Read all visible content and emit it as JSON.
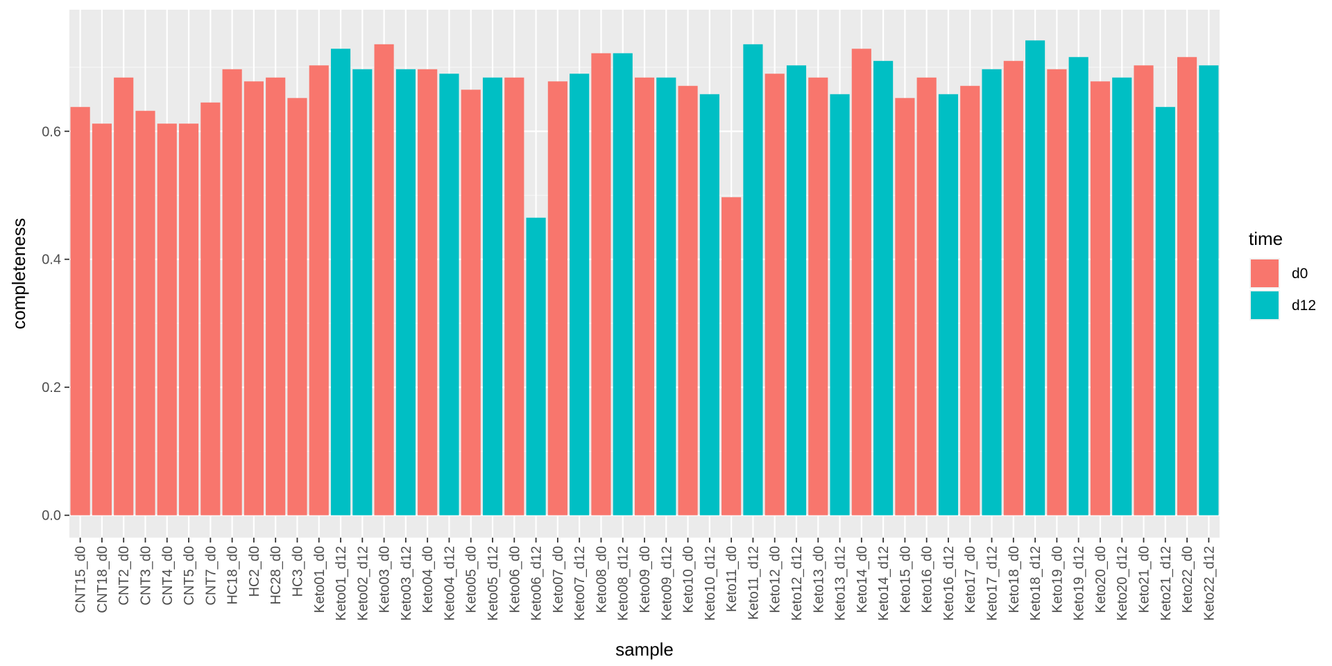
{
  "chart_data": {
    "type": "bar",
    "title": "",
    "xlabel": "sample",
    "ylabel": "completeness",
    "ylim": [
      -0.035,
      0.79
    ],
    "yticks": [
      0.0,
      0.2,
      0.4,
      0.6
    ],
    "ytick_labels": [
      "0.0",
      "0.2",
      "0.4",
      "0.6"
    ],
    "grid": true,
    "legend": {
      "title": "time",
      "position": "right",
      "entries": [
        {
          "label": "d0",
          "color": "#F8766D"
        },
        {
          "label": "d12",
          "color": "#00BFC4"
        }
      ]
    },
    "categories": [
      "CNT15_d0",
      "CNT18_d0",
      "CNT2_d0",
      "CNT3_d0",
      "CNT4_d0",
      "CNT5_d0",
      "CNT7_d0",
      "HC18_d0",
      "HC2_d0",
      "HC28_d0",
      "HC3_d0",
      "Keto01_d0",
      "Keto01_d12",
      "Keto02_d12",
      "Keto03_d0",
      "Keto03_d12",
      "Keto04_d0",
      "Keto04_d12",
      "Keto05_d0",
      "Keto05_d12",
      "Keto06_d0",
      "Keto06_d12",
      "Keto07_d0",
      "Keto07_d12",
      "Keto08_d0",
      "Keto08_d12",
      "Keto09_d0",
      "Keto09_d12",
      "Keto10_d0",
      "Keto10_d12",
      "Keto11_d0",
      "Keto11_d12",
      "Keto12_d0",
      "Keto12_d12",
      "Keto13_d0",
      "Keto13_d12",
      "Keto14_d0",
      "Keto14_d12",
      "Keto15_d0",
      "Keto16_d0",
      "Keto16_d12",
      "Keto17_d0",
      "Keto17_d12",
      "Keto18_d0",
      "Keto18_d12",
      "Keto19_d0",
      "Keto19_d12",
      "Keto20_d0",
      "Keto20_d12",
      "Keto21_d0",
      "Keto21_d12",
      "Keto22_d0",
      "Keto22_d12"
    ],
    "values": [
      0.638,
      0.612,
      0.684,
      0.632,
      0.612,
      0.612,
      0.645,
      0.697,
      0.678,
      0.684,
      0.652,
      0.703,
      0.729,
      0.697,
      0.736,
      0.697,
      0.697,
      0.69,
      0.665,
      0.684,
      0.684,
      0.465,
      0.678,
      0.69,
      0.722,
      0.722,
      0.684,
      0.684,
      0.671,
      0.658,
      0.497,
      0.736,
      0.69,
      0.703,
      0.684,
      0.658,
      0.729,
      0.71,
      0.652,
      0.684,
      0.658,
      0.671,
      0.697,
      0.71,
      0.742,
      0.697,
      0.716,
      0.678,
      0.684,
      0.703,
      0.638,
      0.716,
      0.703
    ],
    "groups": [
      "d0",
      "d0",
      "d0",
      "d0",
      "d0",
      "d0",
      "d0",
      "d0",
      "d0",
      "d0",
      "d0",
      "d0",
      "d12",
      "d12",
      "d0",
      "d12",
      "d0",
      "d12",
      "d0",
      "d12",
      "d0",
      "d12",
      "d0",
      "d12",
      "d0",
      "d12",
      "d0",
      "d12",
      "d0",
      "d12",
      "d0",
      "d12",
      "d0",
      "d12",
      "d0",
      "d12",
      "d0",
      "d12",
      "d0",
      "d0",
      "d12",
      "d0",
      "d12",
      "d0",
      "d12",
      "d0",
      "d12",
      "d0",
      "d12",
      "d0",
      "d12",
      "d0",
      "d12"
    ],
    "colors": {
      "panel_background": "#EBEBEB",
      "grid_major": "#FFFFFF",
      "grid_minor": "#F5F5F5"
    }
  }
}
